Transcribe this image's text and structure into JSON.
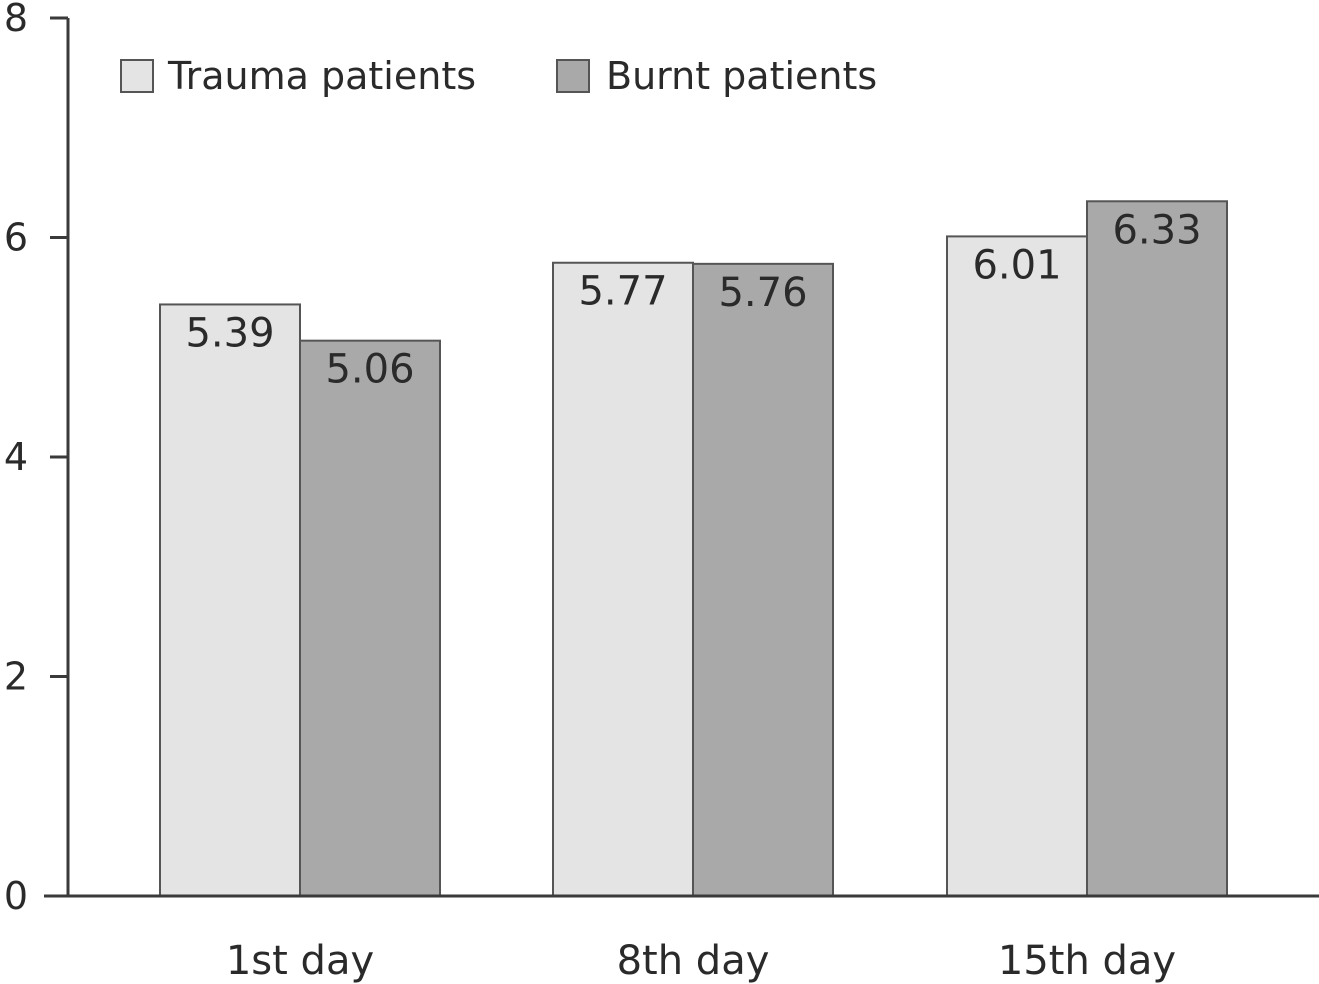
{
  "chart_data": {
    "type": "bar",
    "categories": [
      "1st day",
      "8th day",
      "15th day"
    ],
    "series": [
      {
        "name": "Trauma patients",
        "values": [
          5.39,
          5.77,
          6.01
        ],
        "value_labels": [
          "5.39",
          "5.77",
          "6.01"
        ],
        "color": "#e4e4e4"
      },
      {
        "name": "Burnt patients",
        "values": [
          5.06,
          5.76,
          6.33
        ],
        "value_labels": [
          "5.06",
          "5.76",
          "6.33"
        ],
        "color": "#a9a9a9"
      }
    ],
    "yticks": [
      0,
      2,
      4,
      6,
      8
    ],
    "ytick_labels": [
      "0",
      "2",
      "4",
      "6",
      "8"
    ],
    "ylim": [
      0,
      8
    ],
    "title": "",
    "xlabel": "",
    "ylabel": "",
    "grid": false,
    "legend": "top-left",
    "colors": {
      "axis": "#3a3a3a",
      "bar_outline": "#555555",
      "text": "#2a2a2a"
    }
  }
}
